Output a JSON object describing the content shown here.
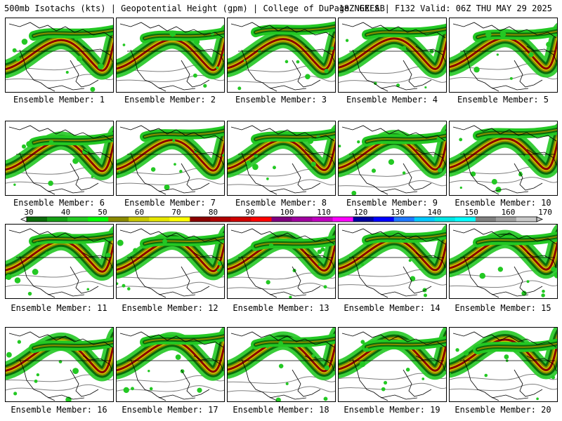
{
  "header": {
    "left_text": "500mb Isotachs (kts) | Geopotential Height (gpm) | College of DuPage NEXLAB",
    "right_text": "18Z GEFS | F132 Valid: 06Z THU MAY 29 2025"
  },
  "members": [
    "Ensemble Member: 1",
    "Ensemble Member: 2",
    "Ensemble Member: 3",
    "Ensemble Member: 4",
    "Ensemble Member: 5",
    "Ensemble Member: 6",
    "Ensemble Member: 7",
    "Ensemble Member: 8",
    "Ensemble Member: 9",
    "Ensemble Member: 10",
    "Ensemble Member: 11",
    "Ensemble Member: 12",
    "Ensemble Member: 13",
    "Ensemble Member: 14",
    "Ensemble Member: 15",
    "Ensemble Member: 16",
    "Ensemble Member: 17",
    "Ensemble Member: 18",
    "Ensemble Member: 19",
    "Ensemble Member: 20"
  ],
  "colorbar": {
    "ticks": [
      "30",
      "40",
      "50",
      "60",
      "70",
      "80",
      "90",
      "100",
      "110",
      "120",
      "130",
      "140",
      "150",
      "160",
      "170"
    ],
    "colors": [
      "#0a6b0a",
      "#14a014",
      "#23c823",
      "#00ff00",
      "#8a8a00",
      "#c8c800",
      "#e6e600",
      "#ffff00",
      "#8b0000",
      "#b00000",
      "#d00000",
      "#ff0000",
      "#800080",
      "#a000a0",
      "#c000c0",
      "#ff00ff",
      "#0000a0",
      "#0000ff",
      "#1e78ff",
      "#00c8ff",
      "#00e6e6",
      "#00ffff",
      "#808080",
      "#a0a0a0",
      "#c8c8c8"
    ]
  },
  "legend_colors": {
    "dark_green": "#0a6b0a",
    "green": "#23c823",
    "olive": "#8a8a00",
    "yellow": "#c8c800",
    "dark_red": "#8b0000",
    "height_contour": "#808080",
    "coastline": "#000000"
  }
}
